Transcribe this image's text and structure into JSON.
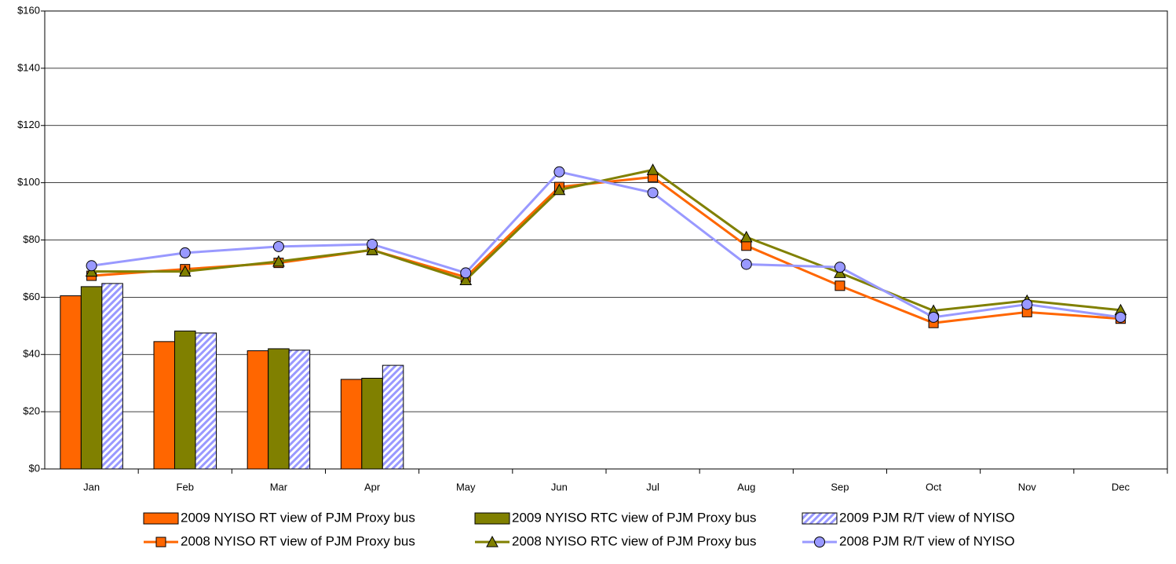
{
  "chart_data": {
    "type": "combo",
    "categories": [
      "Jan",
      "Feb",
      "Mar",
      "Apr",
      "May",
      "Jun",
      "Jul",
      "Aug",
      "Sep",
      "Oct",
      "Nov",
      "Dec"
    ],
    "ylim": [
      0,
      160
    ],
    "yticks": [
      {
        "value": 0,
        "label": "$0"
      },
      {
        "value": 20,
        "label": "$20"
      },
      {
        "value": 40,
        "label": "$40"
      },
      {
        "value": 60,
        "label": "$60"
      },
      {
        "value": 80,
        "label": "$80"
      },
      {
        "value": 100,
        "label": "$100"
      },
      {
        "value": 120,
        "label": "$120"
      },
      {
        "value": 140,
        "label": "$140"
      },
      {
        "value": 160,
        "label": "$160"
      }
    ],
    "grid": true,
    "series": [
      {
        "name": "2009 NYISO RT view of PJM Proxy bus",
        "type": "bar",
        "color": "#ff6600",
        "values": [
          60.5,
          44.5,
          41.3,
          31.3,
          null,
          null,
          null,
          null,
          null,
          null,
          null,
          null
        ]
      },
      {
        "name": "2009 NYISO RTC view of PJM Proxy bus",
        "type": "bar",
        "color": "#808000",
        "values": [
          63.7,
          48.2,
          42,
          31.7,
          null,
          null,
          null,
          null,
          null,
          null,
          null,
          null
        ]
      },
      {
        "name": "2009 PJM R/T view of NYISO",
        "type": "bar",
        "color": "#9999ff",
        "pattern": "hatch",
        "values": [
          64.8,
          47.5,
          41.5,
          36.2,
          null,
          null,
          null,
          null,
          null,
          null,
          null,
          null
        ]
      },
      {
        "name": "2008 NYISO RT view of PJM Proxy bus",
        "type": "line",
        "marker": "square",
        "color": "#ff6600",
        "values": [
          67.5,
          69.8,
          72,
          76.5,
          67,
          98.5,
          102,
          78,
          64,
          51,
          54.8,
          52.5
        ]
      },
      {
        "name": "2008 NYISO RTC view of PJM Proxy bus",
        "type": "line",
        "marker": "triangle",
        "color": "#808000",
        "values": [
          69,
          69,
          72.5,
          76.5,
          66,
          97.5,
          104.5,
          81,
          68.5,
          55.3,
          58.8,
          55.5
        ]
      },
      {
        "name": "2008 PJM R/T view of NYISO",
        "type": "line",
        "marker": "circle",
        "color": "#9999ff",
        "values": [
          71,
          75.5,
          77.7,
          78.5,
          68.5,
          103.8,
          96.5,
          71.5,
          70.5,
          53,
          57.5,
          53
        ]
      }
    ]
  }
}
